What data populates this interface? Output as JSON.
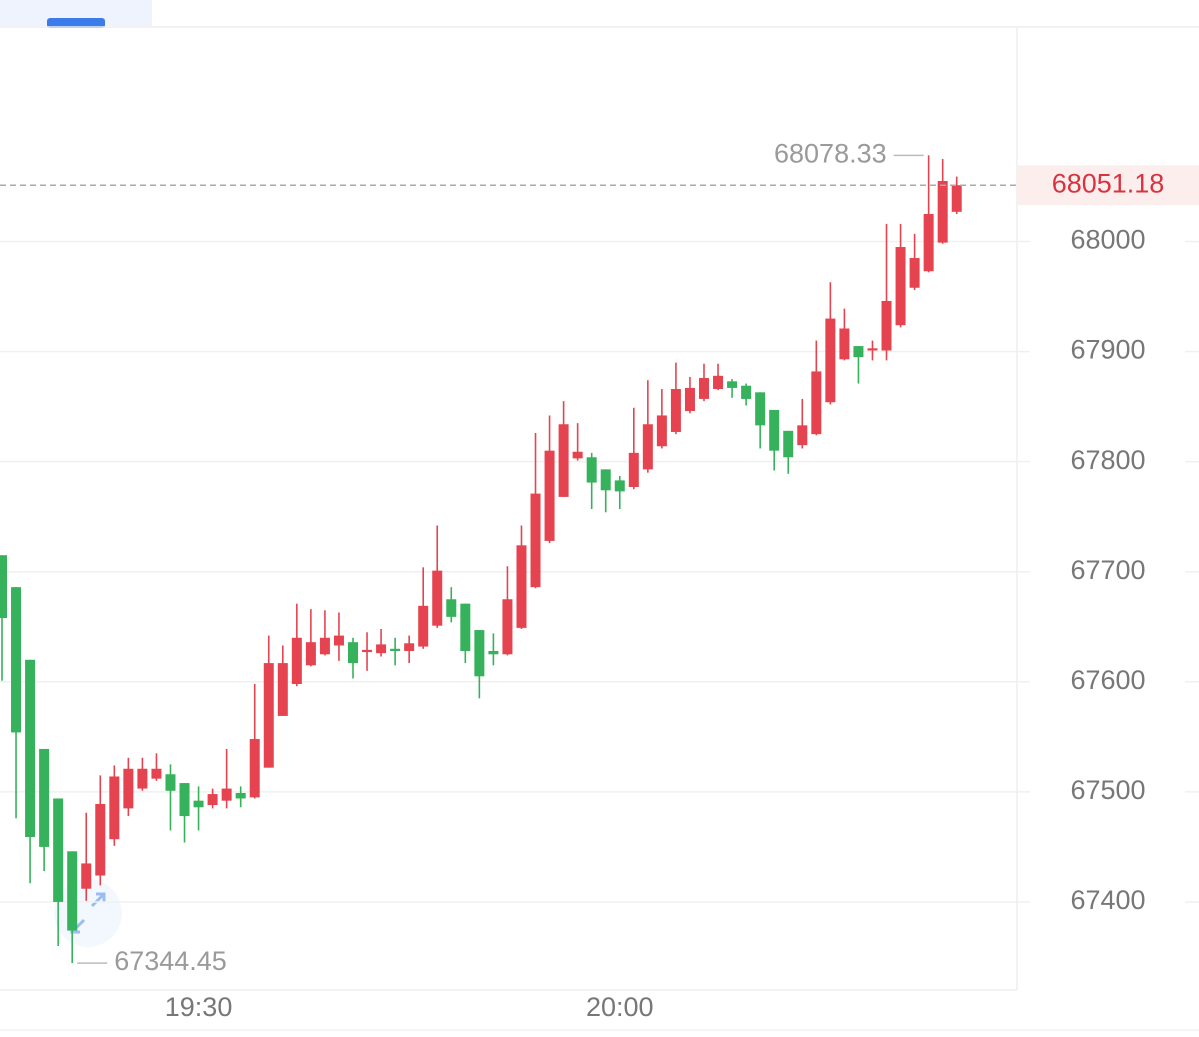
{
  "chart_data": {
    "type": "candlestick",
    "categories": [
      null,
      null,
      null,
      null,
      null,
      null,
      null,
      null,
      null,
      null,
      null,
      null,
      null,
      null,
      "19:30",
      null,
      null,
      null,
      null,
      null,
      null,
      null,
      null,
      null,
      null,
      null,
      null,
      null,
      null,
      null,
      null,
      null,
      null,
      null,
      null,
      null,
      null,
      null,
      null,
      null,
      null,
      null,
      null,
      null,
      "20:00",
      null,
      null,
      null,
      null,
      null,
      null,
      null,
      null,
      null,
      null,
      null,
      null,
      null,
      null,
      null,
      null,
      null,
      null,
      null,
      null,
      null,
      null,
      null,
      null
    ],
    "open": [
      67715,
      67686,
      67620,
      67539,
      67494,
      67446,
      67412,
      67424,
      67457,
      67485,
      67503,
      67512,
      67516,
      67508,
      67492,
      67488,
      67492,
      67499,
      67495,
      67522,
      67569,
      67598,
      67615,
      67625,
      67633,
      67636,
      67627,
      67626,
      67630,
      67628,
      67632,
      67651,
      67675,
      67671,
      67647,
      67628,
      67625,
      67649,
      67686,
      67728,
      67768,
      67803,
      67804,
      67793,
      67783,
      67777,
      67793,
      67814,
      67827,
      67846,
      67857,
      67866,
      67873,
      67869,
      67863,
      67847,
      67828,
      67815,
      67825,
      67854,
      67893,
      67905,
      67901,
      67901,
      67924,
      67958,
      67973,
      67999,
      68027
    ],
    "high": [
      67715,
      67686,
      67620,
      67539,
      67494,
      67446,
      67481,
      67515,
      67524,
      67531,
      67531,
      67535,
      67525,
      67508,
      67505,
      67503,
      67539,
      67505,
      67598,
      67642,
      67633,
      67671,
      67666,
      67665,
      67663,
      67640,
      67645,
      67648,
      67640,
      67642,
      67704,
      67742,
      67686,
      67671,
      67647,
      67644,
      67705,
      67742,
      67826,
      67842,
      67855,
      67835,
      67808,
      67793,
      67787,
      67849,
      67874,
      67866,
      67890,
      67877,
      67889,
      67889,
      67875,
      67871,
      67863,
      67847,
      67828,
      67857,
      67910,
      67963,
      67939,
      67905,
      67910,
      68016,
      68016,
      68007,
      68078.33,
      68075,
      68059
    ],
    "low": [
      67601,
      67476,
      67417,
      67428,
      67360,
      67344.45,
      67401,
      67415,
      67451,
      67478,
      67501,
      67510,
      67465,
      67454,
      67465,
      67485,
      67485,
      67486,
      67494,
      67522,
      67569,
      67596,
      67614,
      67624,
      67619,
      67603,
      67610,
      67623,
      67615,
      67617,
      67630,
      67649,
      67654,
      67617,
      67585,
      67615,
      67624,
      67648,
      67685,
      67726,
      67768,
      67801,
      67757,
      67754,
      67757,
      67775,
      67790,
      67812,
      67825,
      67844,
      67855,
      67865,
      67858,
      67851,
      67812,
      67792,
      67789,
      67812,
      67824,
      67852,
      67892,
      67871,
      67892,
      67892,
      67922,
      67956,
      67972,
      67998,
      68025
    ],
    "close": [
      67658,
      67554,
      67459,
      67450,
      67400,
      67374,
      67435,
      67489,
      67514,
      67521,
      67521,
      67521,
      67501,
      67478,
      67486,
      67498,
      67503,
      67494,
      67548,
      67617,
      67617,
      67640,
      67636,
      67640,
      67642,
      67617,
      67629,
      67634,
      67628,
      67635,
      67669,
      67701,
      67659,
      67628,
      67605,
      67625,
      67675,
      67724,
      67771,
      67810,
      67834,
      67809,
      67781,
      67774,
      67773,
      67808,
      67834,
      67842,
      67866,
      67867,
      67876,
      67878,
      67867,
      67857,
      67833,
      67810,
      67804,
      67833,
      67882,
      67930,
      67921,
      67895,
      67903,
      67946,
      67995,
      67985,
      68025,
      68055,
      68051.18
    ],
    "up_color": "#e5434f",
    "down_color": "#35b25b",
    "ylim": [
      67320,
      68194
    ],
    "yticks": [
      67400,
      67500,
      67600,
      67700,
      67800,
      67900,
      68000
    ],
    "grid": true,
    "price_line": true,
    "mark_extremes": true
  }
}
